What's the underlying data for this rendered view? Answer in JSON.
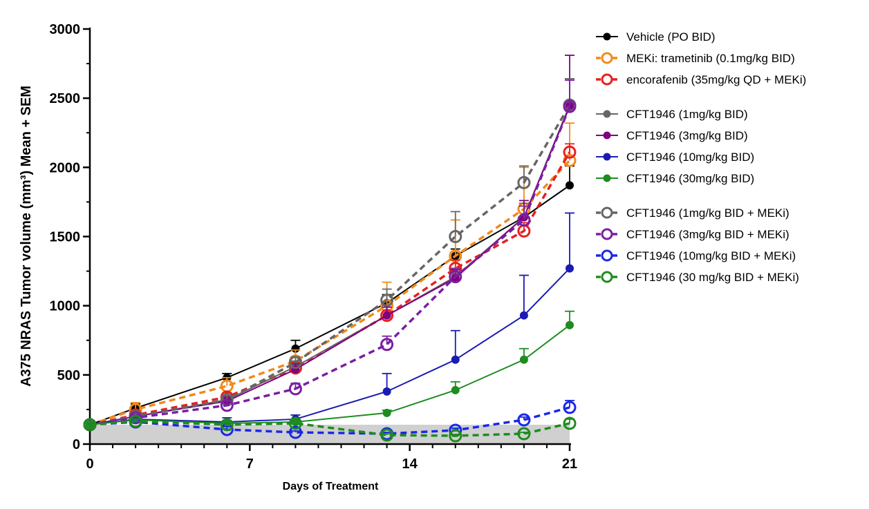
{
  "chart_data": {
    "type": "line",
    "xlabel": "Days of Treatment",
    "ylabel": "A375 NRAS Tumor volume (mm³) Mean + SEM",
    "xlim": [
      0,
      21
    ],
    "ylim": [
      0,
      3000
    ],
    "xticks": [
      "0",
      "7",
      "14",
      "21"
    ],
    "xtick_values": [
      0,
      7,
      14,
      21
    ],
    "yticks": [
      "0",
      "500",
      "1000",
      "1500",
      "2000",
      "2500",
      "3000"
    ],
    "ytick_values": [
      0,
      500,
      1000,
      1500,
      2000,
      2500,
      3000
    ],
    "shaded_band": {
      "y_from": 0,
      "y_to": 140,
      "color": "#d0d0d0"
    },
    "x": [
      0,
      2,
      6,
      9,
      13,
      16,
      19,
      21
    ],
    "series": [
      {
        "name": "Vehicle (PO BID)",
        "color": "#000000",
        "dashed": false,
        "open": false,
        "values": [
          140,
          260,
          480,
          690,
          1020,
          1360,
          1640,
          1870
        ],
        "sem": [
          0,
          30,
          30,
          60,
          60,
          50,
          100,
          140
        ]
      },
      {
        "name": "MEKi: trametinib (0.1mg/kg BID)",
        "color": "#f08a1c",
        "dashed": true,
        "open": true,
        "values": [
          140,
          250,
          420,
          600,
          1000,
          1360,
          1700,
          2050
        ],
        "sem": [
          0,
          50,
          60,
          80,
          170,
          260,
          300,
          270
        ]
      },
      {
        "name": "encorafenib (35mg/kg QD + MEKi)",
        "color": "#e62020",
        "dashed": true,
        "open": true,
        "values": [
          140,
          210,
          340,
          550,
          930,
          1270,
          1540,
          2110
        ],
        "sem": [
          0,
          20,
          30,
          40,
          60,
          60,
          60,
          60
        ]
      },
      {
        "name": "CFT1946 (1mg/kg BID)",
        "color": "#666666",
        "dashed": false,
        "open": false,
        "values": [
          140,
          200,
          320,
          560,
          930,
          1210,
          1640,
          2450
        ],
        "sem": [
          0,
          20,
          30,
          40,
          60,
          60,
          100,
          190
        ]
      },
      {
        "name": "CFT1946 (3mg/kg BID)",
        "color": "#800080",
        "dashed": false,
        "open": false,
        "values": [
          140,
          200,
          310,
          540,
          930,
          1200,
          1640,
          2440
        ],
        "sem": [
          0,
          20,
          30,
          40,
          60,
          60,
          120,
          370
        ]
      },
      {
        "name": "CFT1946 (10mg/kg BID)",
        "color": "#1a1ab4",
        "dashed": false,
        "open": false,
        "values": [
          140,
          180,
          160,
          180,
          380,
          610,
          930,
          1270
        ],
        "sem": [
          0,
          20,
          30,
          30,
          130,
          210,
          290,
          400
        ]
      },
      {
        "name": "CFT1946 (30mg/kg BID)",
        "color": "#1e8c1e",
        "dashed": false,
        "open": false,
        "values": [
          140,
          175,
          150,
          160,
          225,
          390,
          610,
          860
        ],
        "sem": [
          0,
          15,
          20,
          20,
          20,
          60,
          80,
          100
        ]
      },
      {
        "name": "CFT1946 (1mg/kg BID + MEKi)",
        "color": "#666666",
        "dashed": true,
        "open": true,
        "values": [
          140,
          200,
          320,
          590,
          1040,
          1500,
          1890,
          2450
        ],
        "sem": [
          0,
          20,
          30,
          40,
          80,
          180,
          120,
          190
        ]
      },
      {
        "name": "CFT1946 (3mg/kg BID + MEKi)",
        "color": "#7a1fa2",
        "dashed": true,
        "open": true,
        "values": [
          140,
          190,
          280,
          400,
          720,
          1210,
          1620,
          2440
        ],
        "sem": [
          0,
          20,
          30,
          40,
          60,
          60,
          100,
          190
        ]
      },
      {
        "name": "CFT1946 (10mg/kg BID + MEKi)",
        "color": "#1a28e6",
        "dashed": true,
        "open": true,
        "values": [
          140,
          160,
          105,
          85,
          75,
          100,
          175,
          265
        ],
        "sem": [
          0,
          15,
          20,
          10,
          10,
          15,
          20,
          50
        ]
      },
      {
        "name": "CFT1946 (30 mg/kg BID + MEKi)",
        "color": "#1e8c1e",
        "dashed": true,
        "open": true,
        "values": [
          140,
          165,
          140,
          150,
          65,
          60,
          75,
          150
        ],
        "sem": [
          0,
          15,
          15,
          15,
          10,
          10,
          10,
          30
        ]
      }
    ]
  }
}
